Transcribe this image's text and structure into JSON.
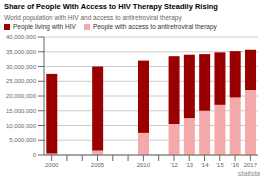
{
  "chart_data": {
    "type": "bar",
    "title": "Share of People With Access to HIV Therapy Steadily Rising",
    "subtitle": "World population with HIV and access to antiretroviral therapy",
    "categories": [
      "2000",
      null,
      null,
      "2005",
      null,
      null,
      "2010",
      null,
      "’12",
      "’13",
      "’14",
      "’15",
      "’16",
      "2017"
    ],
    "series": [
      {
        "name": "People living with HIV",
        "color": "#9B0000",
        "values": [
          27000000,
          null,
          null,
          28500000,
          null,
          null,
          24500000,
          null,
          23000000,
          21500000,
          19200000,
          17800000,
          15700000,
          13700000
        ]
      },
      {
        "name": "People with access to antiretroviral therapy",
        "color": "#F4AAAA",
        "values": [
          500000,
          null,
          null,
          1500000,
          null,
          null,
          7500000,
          null,
          10500000,
          12500000,
          15000000,
          17000000,
          19500000,
          22000000
        ]
      }
    ],
    "stacked": true,
    "ylim": [
      0,
      40000000
    ],
    "yticks": [
      0,
      {
        "value": 5000000,
        "label": "5,000,000"
      },
      {
        "value": 10000000,
        "label": "10,000,000"
      },
      {
        "value": 15000000,
        "label": "15,000,000"
      },
      {
        "value": 20000000,
        "label": "20,000,000"
      },
      {
        "value": 25000000,
        "label": "25,000,000"
      },
      {
        "value": 30000000,
        "label": "30,000,000"
      },
      {
        "value": 35000000,
        "label": "35,000,000"
      },
      {
        "value": 40000000,
        "label": "40,000,000"
      }
    ],
    "grid": true,
    "legend": "upper left",
    "annotations": [
      "statista"
    ]
  }
}
